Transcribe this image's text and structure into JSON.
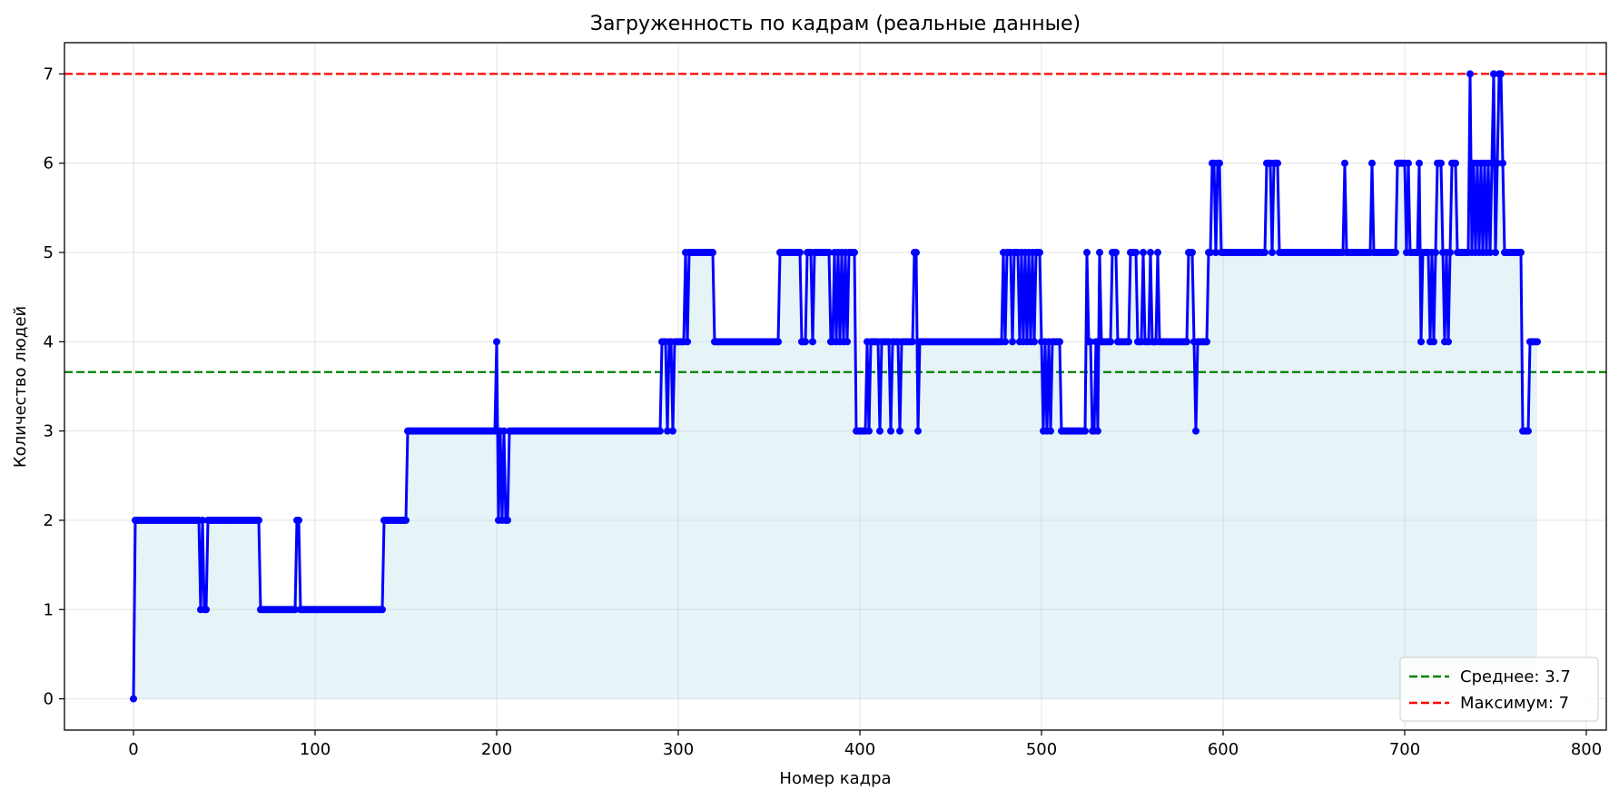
{
  "chart_data": {
    "type": "line",
    "title": "Загруженность по кадрам (реальные данные)",
    "xlabel": "Номер кадра",
    "ylabel": "Количество людей",
    "xlim": [
      -38,
      811
    ],
    "ylim": [
      -0.35,
      7.35
    ],
    "xticks": [
      0,
      100,
      200,
      300,
      400,
      500,
      600,
      700,
      800
    ],
    "yticks": [
      0,
      1,
      2,
      3,
      4,
      5,
      6,
      7
    ],
    "grid": true,
    "legend_position": "lower-right",
    "colors": {
      "line": "#0000ff",
      "fill": "#add8e6",
      "mean": "#008000",
      "max": "#ff0000",
      "grid": "#b0b0b0"
    },
    "reference_lines": [
      {
        "label": "Среднее: 3.7",
        "y": 3.66,
        "color": "#008000"
      },
      {
        "label": "Максимум: 7",
        "y": 7,
        "color": "#ff0000"
      }
    ],
    "series": [
      {
        "segments": [
          [
            0,
            0
          ],
          [
            1,
            2
          ],
          [
            36,
            2
          ],
          [
            37,
            1
          ],
          [
            38,
            2
          ],
          [
            39,
            1
          ],
          [
            40,
            1
          ],
          [
            41,
            2
          ],
          [
            69,
            2
          ],
          [
            70,
            1
          ],
          [
            89,
            1
          ],
          [
            90,
            2
          ],
          [
            91,
            2
          ],
          [
            92,
            1
          ],
          [
            137,
            1
          ],
          [
            138,
            2
          ],
          [
            150,
            2
          ],
          [
            151,
            3
          ],
          [
            199,
            3
          ],
          [
            200,
            4
          ],
          [
            201,
            2
          ],
          [
            202,
            3
          ],
          [
            203,
            2
          ],
          [
            204,
            3
          ],
          [
            205,
            2
          ],
          [
            206,
            2
          ],
          [
            207,
            3
          ],
          [
            290,
            3
          ],
          [
            291,
            4
          ],
          [
            293,
            4
          ],
          [
            294,
            3
          ],
          [
            295,
            4
          ],
          [
            296,
            4
          ],
          [
            297,
            3
          ],
          [
            298,
            4
          ],
          [
            303,
            4
          ],
          [
            304,
            5
          ],
          [
            305,
            4
          ],
          [
            306,
            5
          ],
          [
            319,
            5
          ],
          [
            320,
            4
          ],
          [
            355,
            4
          ],
          [
            356,
            5
          ],
          [
            367,
            5
          ],
          [
            368,
            4
          ],
          [
            370,
            4
          ],
          [
            371,
            5
          ],
          [
            373,
            5
          ],
          [
            374,
            4
          ],
          [
            375,
            5
          ],
          [
            383,
            5
          ],
          [
            384,
            4
          ],
          [
            386,
            5
          ],
          [
            387,
            4
          ],
          [
            388,
            5
          ],
          [
            389,
            4
          ],
          [
            390,
            5
          ],
          [
            391,
            4
          ],
          [
            392,
            5
          ],
          [
            393,
            4
          ],
          [
            394,
            5
          ],
          [
            397,
            5
          ],
          [
            398,
            3
          ],
          [
            403,
            3
          ],
          [
            404,
            4
          ],
          [
            405,
            3
          ],
          [
            406,
            4
          ],
          [
            410,
            4
          ],
          [
            411,
            3
          ],
          [
            412,
            4
          ],
          [
            416,
            4
          ],
          [
            417,
            3
          ],
          [
            418,
            4
          ],
          [
            421,
            4
          ],
          [
            422,
            3
          ],
          [
            423,
            4
          ],
          [
            429,
            4
          ],
          [
            430,
            5
          ],
          [
            431,
            5
          ],
          [
            432,
            3
          ],
          [
            433,
            4
          ],
          [
            478,
            4
          ],
          [
            479,
            5
          ],
          [
            480,
            4
          ],
          [
            481,
            5
          ],
          [
            483,
            5
          ],
          [
            484,
            4
          ],
          [
            485,
            5
          ],
          [
            487,
            5
          ],
          [
            488,
            4
          ],
          [
            489,
            5
          ],
          [
            490,
            4
          ],
          [
            491,
            5
          ],
          [
            492,
            4
          ],
          [
            493,
            5
          ],
          [
            494,
            4
          ],
          [
            495,
            5
          ],
          [
            496,
            4
          ],
          [
            497,
            5
          ],
          [
            499,
            5
          ],
          [
            500,
            4
          ],
          [
            501,
            3
          ],
          [
            502,
            4
          ],
          [
            503,
            3
          ],
          [
            504,
            4
          ],
          [
            505,
            3
          ],
          [
            506,
            4
          ],
          [
            510,
            4
          ],
          [
            511,
            3
          ],
          [
            524,
            3
          ],
          [
            525,
            5
          ],
          [
            526,
            4
          ],
          [
            527,
            4
          ],
          [
            528,
            3
          ],
          [
            529,
            3
          ],
          [
            530,
            4
          ],
          [
            531,
            3
          ],
          [
            532,
            5
          ],
          [
            533,
            4
          ],
          [
            538,
            4
          ],
          [
            539,
            5
          ],
          [
            541,
            5
          ],
          [
            542,
            4
          ],
          [
            548,
            4
          ],
          [
            549,
            5
          ],
          [
            552,
            5
          ],
          [
            553,
            4
          ],
          [
            555,
            4
          ],
          [
            556,
            5
          ],
          [
            557,
            4
          ],
          [
            559,
            4
          ],
          [
            560,
            5
          ],
          [
            561,
            4
          ],
          [
            563,
            4
          ],
          [
            564,
            5
          ],
          [
            565,
            4
          ],
          [
            580,
            4
          ],
          [
            581,
            5
          ],
          [
            583,
            5
          ],
          [
            584,
            4
          ],
          [
            585,
            3
          ],
          [
            586,
            4
          ],
          [
            591,
            4
          ],
          [
            592,
            5
          ],
          [
            593,
            5
          ],
          [
            594,
            6
          ],
          [
            595,
            6
          ],
          [
            596,
            5
          ],
          [
            597,
            6
          ],
          [
            598,
            6
          ],
          [
            599,
            5
          ],
          [
            623,
            5
          ],
          [
            624,
            6
          ],
          [
            626,
            6
          ],
          [
            627,
            5
          ],
          [
            628,
            6
          ],
          [
            630,
            6
          ],
          [
            631,
            5
          ],
          [
            666,
            5
          ],
          [
            667,
            6
          ],
          [
            668,
            5
          ],
          [
            681,
            5
          ],
          [
            682,
            6
          ],
          [
            683,
            5
          ],
          [
            695,
            5
          ],
          [
            696,
            6
          ],
          [
            700,
            6
          ],
          [
            701,
            5
          ],
          [
            702,
            6
          ],
          [
            703,
            5
          ],
          [
            707,
            5
          ],
          [
            708,
            6
          ],
          [
            709,
            4
          ],
          [
            710,
            5
          ],
          [
            713,
            5
          ],
          [
            714,
            4
          ],
          [
            715,
            5
          ],
          [
            716,
            4
          ],
          [
            717,
            5
          ],
          [
            718,
            6
          ],
          [
            720,
            6
          ],
          [
            721,
            5
          ],
          [
            722,
            4
          ],
          [
            723,
            5
          ],
          [
            724,
            4
          ],
          [
            725,
            5
          ],
          [
            726,
            6
          ],
          [
            728,
            6
          ],
          [
            729,
            5
          ],
          [
            735,
            5
          ],
          [
            736,
            7
          ],
          [
            737,
            5
          ],
          [
            738,
            6
          ],
          [
            739,
            5
          ],
          [
            740,
            6
          ],
          [
            741,
            5
          ],
          [
            742,
            6
          ],
          [
            743,
            5
          ],
          [
            744,
            6
          ],
          [
            745,
            5
          ],
          [
            746,
            6
          ],
          [
            747,
            5
          ],
          [
            748,
            6
          ],
          [
            749,
            7
          ],
          [
            750,
            5
          ],
          [
            751,
            6
          ],
          [
            752,
            7
          ],
          [
            753,
            7
          ],
          [
            754,
            6
          ],
          [
            755,
            5
          ],
          [
            764,
            5
          ],
          [
            765,
            3
          ],
          [
            768,
            3
          ],
          [
            769,
            4
          ],
          [
            773,
            4
          ]
        ]
      }
    ]
  }
}
